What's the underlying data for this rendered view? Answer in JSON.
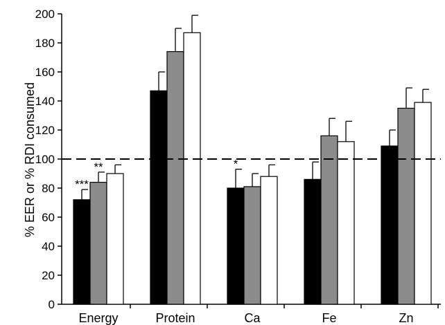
{
  "chart_data": {
    "type": "bar",
    "ylabel": "% EER or % RDI consumed",
    "xlabel": "",
    "ylim": [
      0,
      200
    ],
    "yticks": [
      0,
      20,
      40,
      60,
      80,
      100,
      120,
      140,
      160,
      180,
      200
    ],
    "grid": false,
    "legend": "none",
    "reference_line": {
      "y": 100,
      "style": "dashed"
    },
    "categories": [
      "Energy",
      "Protein",
      "Ca",
      "Fe",
      "Zn"
    ],
    "series": [
      {
        "color": "#000000",
        "values": [
          72,
          147,
          80,
          86,
          109
        ],
        "errors": [
          7,
          13,
          13,
          12,
          11
        ]
      },
      {
        "color": "#8c8c8c",
        "values": [
          84,
          174,
          81,
          116,
          135
        ],
        "errors": [
          7,
          16,
          9,
          12,
          14
        ]
      },
      {
        "color": "#ffffff",
        "values": [
          90,
          187,
          88,
          112,
          139
        ],
        "errors": [
          6,
          12,
          8,
          14,
          9
        ]
      }
    ],
    "annotations": [
      {
        "text": "***",
        "category": "Energy",
        "series": 0
      },
      {
        "text": "**",
        "category": "Energy",
        "series": 1
      },
      {
        "text": "*",
        "category": "Ca",
        "series": 0
      }
    ]
  }
}
